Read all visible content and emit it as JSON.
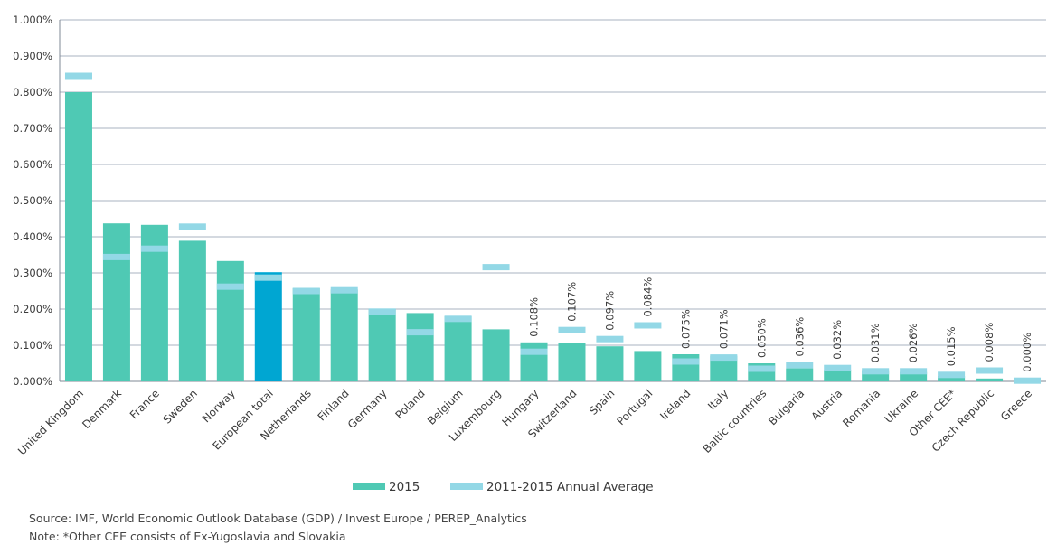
{
  "chart_data": {
    "type": "bar",
    "categories": [
      "United Kingdom",
      "Denmark",
      "France",
      "Sweden",
      "Norway",
      "European total",
      "Netherlands",
      "Finland",
      "Germany",
      "Poland",
      "Belgium",
      "Luxembourg",
      "Hungary",
      "Switzerland",
      "Spain",
      "Portugal",
      "Ireland",
      "Italy",
      "Baltic countries",
      "Bulgaria",
      "Austria",
      "Romania",
      "Ukraine",
      "Other CEE*",
      "Czech Republic",
      "Greece"
    ],
    "series": [
      {
        "name": "2015",
        "type": "bar",
        "values": [
          0.8,
          0.437,
          0.433,
          0.389,
          0.333,
          0.302,
          0.258,
          0.254,
          0.199,
          0.189,
          0.18,
          0.144,
          0.108,
          0.107,
          0.097,
          0.084,
          0.075,
          0.071,
          0.05,
          0.036,
          0.032,
          0.031,
          0.026,
          0.015,
          0.008,
          0.0
        ]
      },
      {
        "name": "2011-2015 Annual Average",
        "type": "marker",
        "values": [
          0.845,
          0.344,
          0.367,
          0.428,
          0.262,
          0.287,
          0.25,
          0.252,
          0.193,
          0.136,
          0.173,
          0.316,
          0.082,
          0.142,
          0.117,
          0.155,
          0.055,
          0.066,
          0.035,
          0.045,
          0.037,
          0.028,
          0.028,
          0.018,
          0.03,
          0.002
        ]
      }
    ],
    "data_labels": [
      "",
      "",
      "",
      "",
      "",
      "",
      "",
      "",
      "",
      "",
      "",
      "",
      "0.108%",
      "0.107%",
      "0.097%",
      "0.084%",
      "0.075%",
      "0.071%",
      "0.050%",
      "0.036%",
      "0.032%",
      "0.031%",
      "0.026%",
      "0.015%",
      "0.008%",
      "0.000%"
    ],
    "y_ticks": [
      "0.000%",
      "0.100%",
      "0.200%",
      "0.300%",
      "0.400%",
      "0.500%",
      "0.600%",
      "0.700%",
      "0.800%",
      "0.900%",
      "1.000%"
    ],
    "ylim": [
      0,
      1.0
    ],
    "highlight_category": "European total",
    "grid": true,
    "legend_position": "bottom-center",
    "colors": {
      "bar": "#4fc9b4",
      "highlight": "#00a6d2",
      "marker": "#93d8e6",
      "grid": "#aab3c0",
      "axis": "#7f8894",
      "text": "#3a3a3a"
    }
  },
  "legend": {
    "items": [
      {
        "label": "2015",
        "kind": "bar"
      },
      {
        "label": "2011-2015 Annual Average",
        "kind": "marker"
      }
    ]
  },
  "footer": {
    "source": "Source: IMF, World Economic Outlook Database (GDP) / Invest Europe / PEREP_Analytics",
    "note": "Note: *Other CEE consists of Ex-Yugoslavia and Slovakia"
  }
}
